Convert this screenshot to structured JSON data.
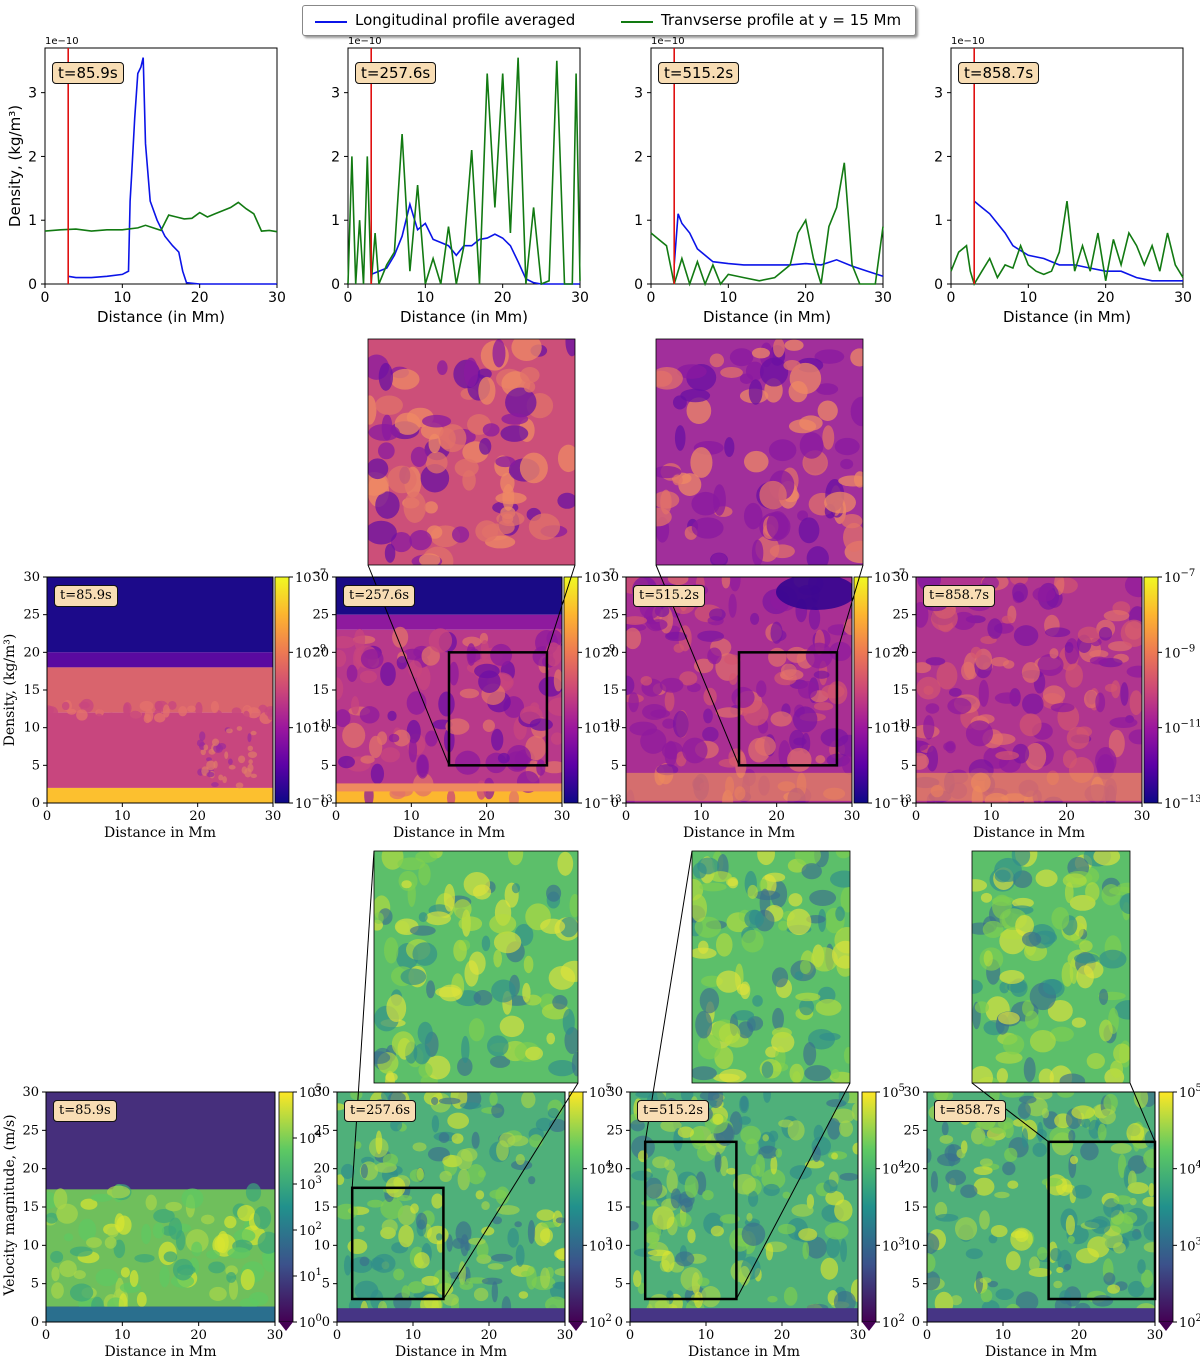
{
  "legend": {
    "longitudinal": "Longitudinal profile averaged",
    "transverse": "Tranvserse profile at y = 15 Mm"
  },
  "colors": {
    "longitudinal": "#0b14e8",
    "transverse": "#127a12",
    "marker": "#e01010",
    "label_bg": "#f8ddb4",
    "plasma": [
      "#0d0887",
      "#5c01a6",
      "#9c179e",
      "#cc4778",
      "#ed7953",
      "#fdb42f",
      "#f0f921"
    ],
    "viridis": [
      "#440154",
      "#3b528b",
      "#21918c",
      "#5ec962",
      "#fde725"
    ]
  },
  "labels": {
    "profile_xlabel": "Distance (in Mm)",
    "profile_ylabel": "Density, (kg/m³)",
    "exponent": "1e−10",
    "map_xlabel": "Distance in Mm",
    "density_ylabel": "Density, (kg/m³)",
    "velocity_ylabel": "Velocity magnitude, (m/s)"
  },
  "times": [
    "t=85.9s",
    "t=257.6s",
    "t=515.2s",
    "t=858.7s"
  ],
  "chart_data": [
    {
      "type": "line",
      "panel": "t=85.9s",
      "xlabel": "Distance (in Mm)",
      "ylabel": "Density, (kg/m³)",
      "y_scale_label": "1e−10",
      "xlim": [
        0,
        30
      ],
      "ylim": [
        0,
        3.7
      ],
      "xticks": [
        0,
        10,
        20,
        30
      ],
      "yticks": [
        0,
        1,
        2,
        3
      ],
      "marker_x": 3,
      "series": [
        {
          "name": "Longitudinal profile averaged",
          "x": [
            3,
            4,
            6,
            8,
            10,
            10.8,
            11,
            11.2,
            11.6,
            12,
            12.4,
            12.7,
            13,
            13.6,
            14.5,
            15.5,
            16.5,
            17.3,
            17.8,
            18.3,
            20,
            25,
            30
          ],
          "y": [
            0.12,
            0.1,
            0.1,
            0.12,
            0.15,
            0.2,
            1.3,
            1.7,
            2.6,
            3.3,
            3.4,
            3.55,
            2.2,
            1.3,
            1.0,
            0.75,
            0.6,
            0.5,
            0.2,
            0.02,
            0.0,
            0.0,
            0.0
          ]
        },
        {
          "name": "Tranvserse profile at y = 15 Mm",
          "x": [
            0,
            2,
            4,
            6,
            8,
            10,
            12,
            13,
            14,
            15,
            16,
            17,
            18,
            19,
            20,
            21,
            22,
            23,
            24,
            25,
            26,
            27,
            28,
            29,
            30
          ],
          "y": [
            0.83,
            0.85,
            0.86,
            0.83,
            0.85,
            0.85,
            0.88,
            0.92,
            0.88,
            0.84,
            1.08,
            1.05,
            1.02,
            1.03,
            1.12,
            1.05,
            1.1,
            1.15,
            1.2,
            1.28,
            1.18,
            1.1,
            0.83,
            0.84,
            0.82
          ]
        }
      ]
    },
    {
      "type": "line",
      "panel": "t=257.6s",
      "xlabel": "Distance (in Mm)",
      "y_scale_label": "1e−10",
      "xlim": [
        0,
        30
      ],
      "ylim": [
        0,
        3.7
      ],
      "xticks": [
        0,
        10,
        20,
        30
      ],
      "yticks": [
        0,
        1,
        2,
        3
      ],
      "marker_x": 3,
      "series": [
        {
          "name": "Longitudinal profile averaged",
          "x": [
            3,
            4,
            5,
            6,
            7,
            8,
            9,
            10,
            11,
            12,
            13,
            14,
            15,
            16,
            17,
            18,
            19,
            20,
            21,
            22,
            23,
            24,
            25,
            30
          ],
          "y": [
            0.15,
            0.2,
            0.25,
            0.45,
            0.75,
            1.25,
            0.85,
            0.95,
            0.7,
            0.65,
            0.6,
            0.45,
            0.6,
            0.6,
            0.7,
            0.72,
            0.78,
            0.72,
            0.6,
            0.35,
            0.08,
            0.02,
            0.0,
            0.0
          ]
        },
        {
          "name": "Tranvserse profile at y = 15 Mm",
          "x": [
            0,
            0.5,
            1,
            1.5,
            2,
            2.5,
            3,
            3.5,
            4,
            5,
            6,
            7,
            8,
            9,
            10,
            11,
            12,
            13,
            14,
            15,
            16,
            17,
            18,
            19,
            20,
            21,
            22,
            23,
            24,
            25,
            26,
            27,
            28,
            29,
            29.5,
            30
          ],
          "y": [
            0.0,
            2.0,
            0.0,
            1.0,
            0.0,
            2.0,
            0.0,
            0.8,
            0.0,
            0.3,
            0.5,
            2.35,
            0.2,
            1.55,
            0.0,
            0.4,
            0.0,
            0.9,
            0.0,
            0.6,
            2.1,
            0.0,
            3.3,
            1.2,
            3.3,
            0.8,
            3.55,
            0.0,
            1.2,
            0.0,
            0.05,
            3.5,
            0.0,
            0.0,
            3.3,
            0.05
          ]
        }
      ]
    },
    {
      "type": "line",
      "panel": "t=515.2s",
      "xlabel": "Distance (in Mm)",
      "y_scale_label": "1e−10",
      "xlim": [
        0,
        30
      ],
      "ylim": [
        0,
        3.7
      ],
      "xticks": [
        0,
        10,
        20,
        30
      ],
      "yticks": [
        0,
        1,
        2,
        3
      ],
      "marker_x": 3,
      "series": [
        {
          "name": "Longitudinal profile averaged",
          "x": [
            3,
            3.5,
            4,
            5,
            6,
            7,
            8,
            10,
            12,
            14,
            16,
            18,
            20,
            22,
            24,
            26,
            28,
            30
          ],
          "y": [
            0.3,
            1.1,
            0.95,
            0.8,
            0.55,
            0.45,
            0.35,
            0.32,
            0.3,
            0.3,
            0.3,
            0.3,
            0.32,
            0.3,
            0.38,
            0.28,
            0.2,
            0.12
          ]
        },
        {
          "name": "Tranvserse profile at y = 15 Mm",
          "x": [
            0,
            1,
            2,
            3,
            4,
            5,
            6,
            7,
            8,
            9,
            10,
            12,
            14,
            16,
            18,
            19,
            20,
            21,
            22,
            23,
            24,
            25,
            26,
            27,
            28,
            29,
            30
          ],
          "y": [
            0.8,
            0.7,
            0.6,
            0.0,
            0.4,
            0.0,
            0.35,
            0.0,
            0.3,
            0.0,
            0.15,
            0.1,
            0.05,
            0.1,
            0.3,
            0.8,
            1.0,
            0.4,
            0.0,
            0.9,
            1.2,
            1.9,
            0.3,
            0.0,
            0.0,
            0.0,
            0.9
          ]
        }
      ]
    },
    {
      "type": "line",
      "panel": "t=858.7s",
      "xlabel": "Distance (in Mm)",
      "y_scale_label": "1e−10",
      "xlim": [
        0,
        30
      ],
      "ylim": [
        0,
        3.7
      ],
      "xticks": [
        0,
        10,
        20,
        30
      ],
      "yticks": [
        0,
        1,
        2,
        3
      ],
      "marker_x": 3,
      "series": [
        {
          "name": "Longitudinal profile averaged",
          "x": [
            3,
            4,
            5,
            6,
            7,
            8,
            10,
            12,
            14,
            16,
            18,
            20,
            22,
            24,
            26,
            28,
            30
          ],
          "y": [
            1.3,
            1.2,
            1.1,
            0.95,
            0.8,
            0.6,
            0.45,
            0.4,
            0.3,
            0.3,
            0.25,
            0.2,
            0.2,
            0.1,
            0.05,
            0.05,
            0.05
          ]
        },
        {
          "name": "Tranvserse profile at y = 15 Mm",
          "x": [
            0,
            1,
            2,
            2.5,
            3,
            4,
            5,
            6,
            7,
            8,
            9,
            10,
            11,
            12,
            13,
            14,
            15,
            16,
            17,
            18,
            19,
            20,
            21,
            22,
            23,
            24,
            25,
            26,
            27,
            28,
            29,
            30
          ],
          "y": [
            0.2,
            0.5,
            0.6,
            0.2,
            0.0,
            0.2,
            0.4,
            0.1,
            0.3,
            0.25,
            0.6,
            0.3,
            0.2,
            0.15,
            0.2,
            0.5,
            1.3,
            0.2,
            0.6,
            0.2,
            0.8,
            0.05,
            0.7,
            0.3,
            0.8,
            0.6,
            0.3,
            0.6,
            0.2,
            0.8,
            0.3,
            0.1
          ]
        }
      ]
    },
    {
      "type": "heatmap",
      "quantity": "Density, (kg/m³)",
      "panels": [
        "t=85.9s",
        "t=257.6s",
        "t=515.2s",
        "t=858.7s"
      ],
      "xlabel": "Distance in Mm",
      "xlim": [
        0,
        30
      ],
      "ylim": [
        0,
        30
      ],
      "xticks": [
        0,
        10,
        20,
        30
      ],
      "yticks": [
        0,
        5,
        10,
        15,
        20,
        25,
        30
      ],
      "colorbar_ticks": [
        "10^-7",
        "10^-9",
        "10^-11",
        "10^-13"
      ],
      "zoom_box": {
        "x": [
          15,
          28
        ],
        "y": [
          5,
          20
        ]
      }
    },
    {
      "type": "heatmap",
      "quantity": "Velocity magnitude, (m/s)",
      "panels": [
        "t=85.9s",
        "t=257.6s",
        "t=515.2s",
        "t=858.7s"
      ],
      "xlabel": "Distance in Mm",
      "xlim": [
        0,
        30
      ],
      "ylim": [
        0,
        30
      ],
      "xticks": [
        0,
        10,
        20,
        30
      ],
      "yticks": [
        0,
        5,
        10,
        15,
        20,
        25,
        30
      ],
      "colorbar_ticks": [
        [
          "10^0",
          "10^1",
          "10^2",
          "10^3",
          "10^4",
          "10^5"
        ],
        [
          "10^2",
          "10^3",
          "10^4",
          "10^5"
        ],
        [
          "10^2",
          "10^3",
          "10^4",
          "10^5"
        ],
        [
          "10^2",
          "10^3",
          "10^4",
          "10^5"
        ]
      ],
      "zoom_boxes": [
        null,
        {
          "x": [
            2,
            14
          ],
          "y": [
            3,
            17.5
          ]
        },
        {
          "x": [
            2,
            14
          ],
          "y": [
            3,
            23.5
          ]
        },
        {
          "x": [
            16,
            30
          ],
          "y": [
            3,
            23.5
          ]
        }
      ]
    }
  ]
}
